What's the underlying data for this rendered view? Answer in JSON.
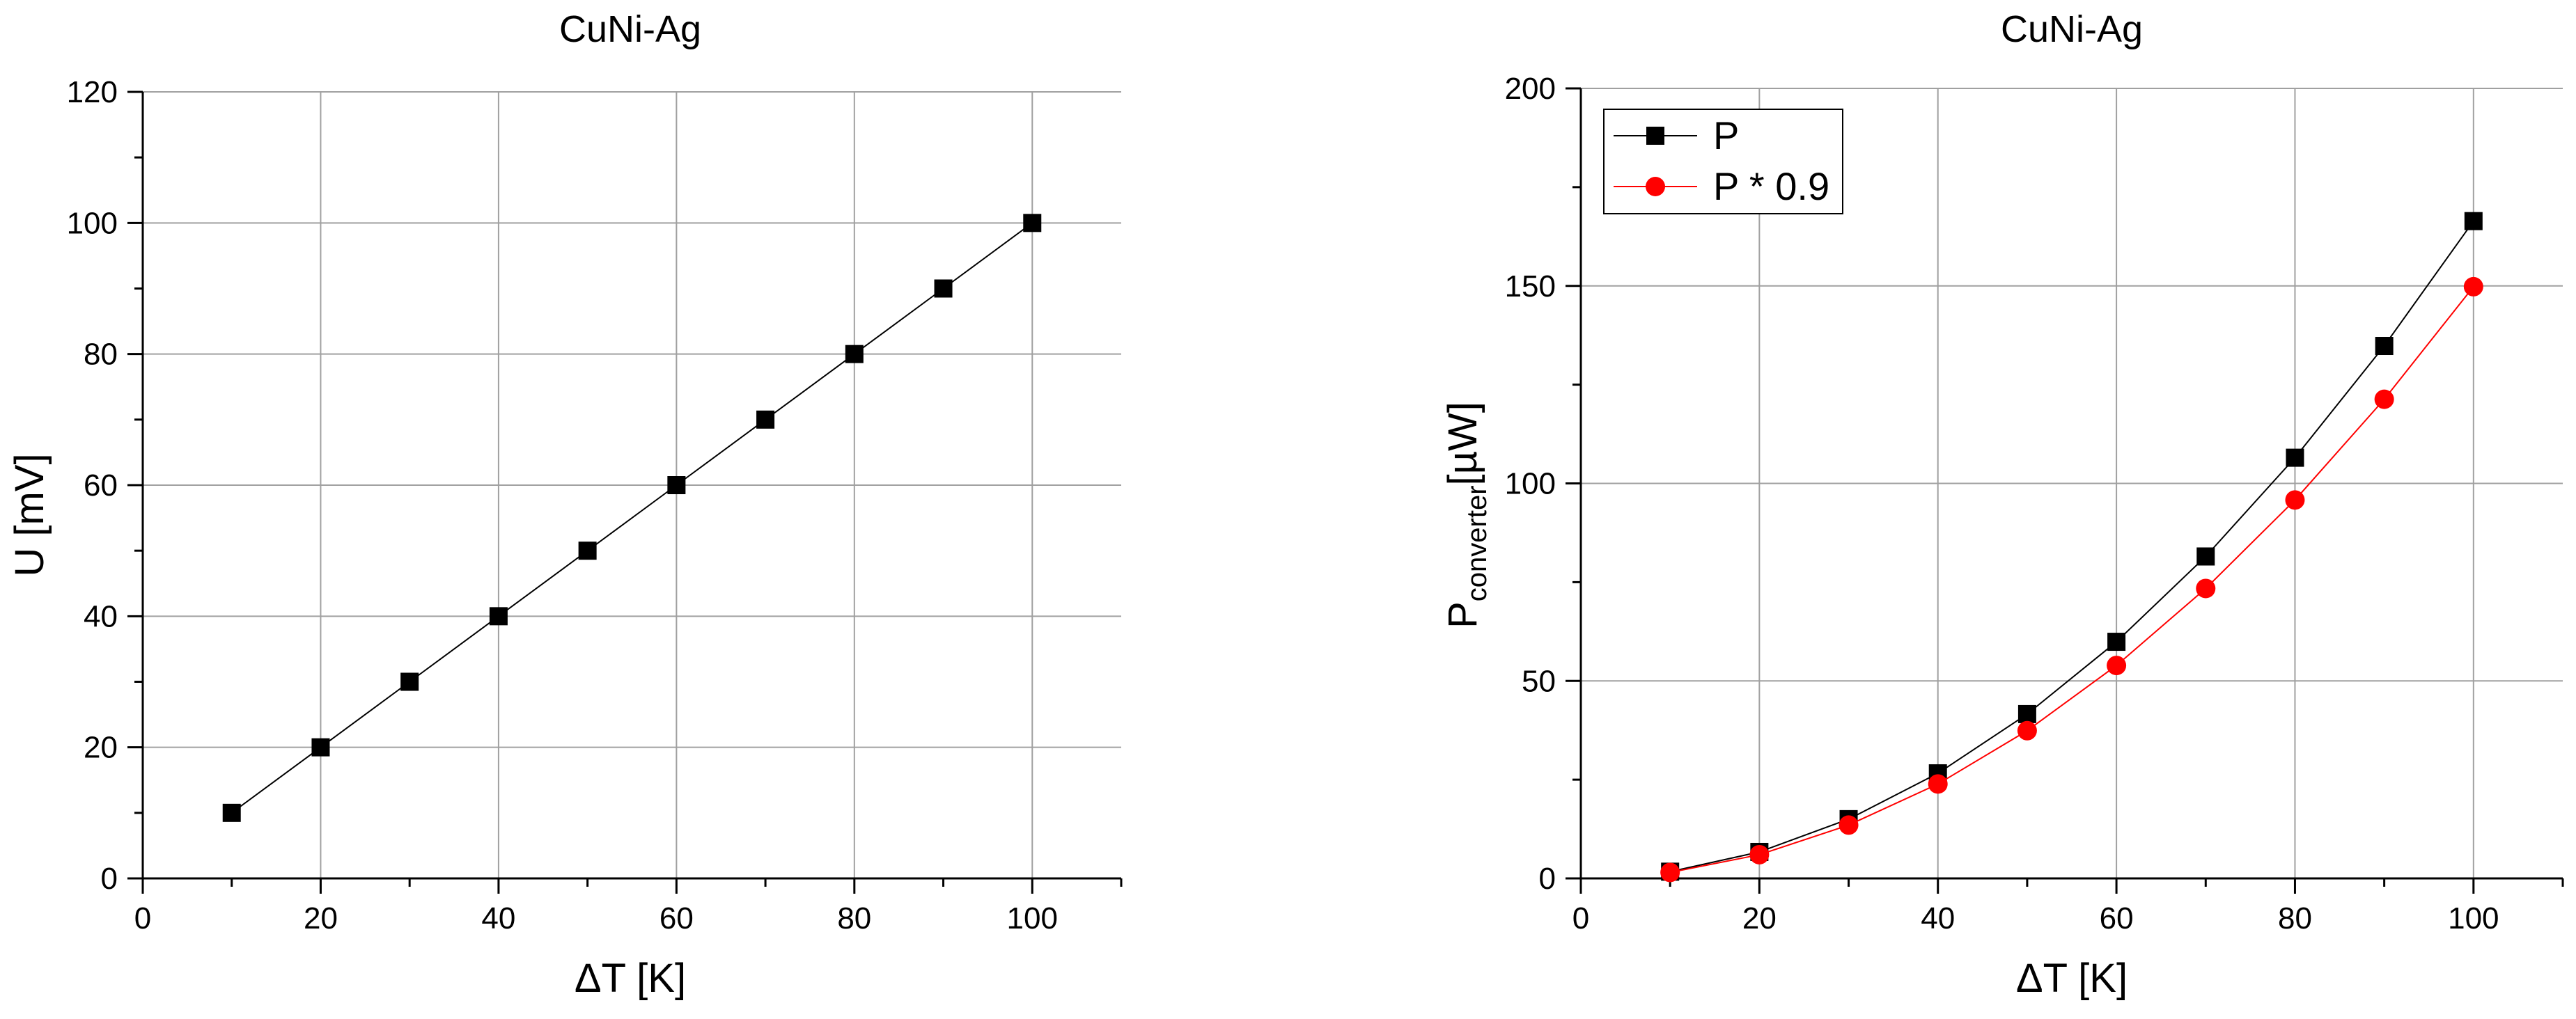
{
  "chart_data": [
    {
      "type": "line",
      "title": "CuNi-Ag",
      "xlabel": "ΔT [K]",
      "ylabel": "U [mV]",
      "xlim": [
        0,
        110
      ],
      "ylim": [
        0,
        120
      ],
      "x_ticks": [
        0,
        20,
        40,
        60,
        80,
        100
      ],
      "y_ticks": [
        0,
        20,
        40,
        60,
        80,
        100,
        120
      ],
      "grid": true,
      "series": [
        {
          "color": "#000000",
          "marker": "square",
          "x": [
            10,
            20,
            30,
            40,
            50,
            60,
            70,
            80,
            90,
            100
          ],
          "y": [
            10,
            20,
            30,
            40,
            50,
            60,
            70,
            80,
            90,
            100
          ]
        }
      ]
    },
    {
      "type": "line",
      "title": "CuNi-Ag",
      "xlabel": "ΔT [K]",
      "ylabel": "P",
      "ylabel_subscript": "converter",
      "ylabel_suffix": "[µW]",
      "xlim": [
        0,
        110
      ],
      "ylim": [
        0,
        200
      ],
      "x_ticks": [
        0,
        20,
        40,
        60,
        80,
        100
      ],
      "y_ticks": [
        0,
        50,
        100,
        150,
        200
      ],
      "grid": true,
      "legend_position": "top-left",
      "series": [
        {
          "name": "P",
          "color": "#000000",
          "marker": "square",
          "x": [
            10,
            20,
            30,
            40,
            50,
            60,
            70,
            80,
            90,
            100
          ],
          "y": [
            1.7,
            6.7,
            15.0,
            26.6,
            41.6,
            59.9,
            81.5,
            106.5,
            134.8,
            166.4
          ]
        },
        {
          "name": "P * 0.9",
          "color": "#ff0000",
          "marker": "circle",
          "x": [
            10,
            20,
            30,
            40,
            50,
            60,
            70,
            80,
            90,
            100
          ],
          "y": [
            1.5,
            6.0,
            13.5,
            23.9,
            37.4,
            53.9,
            73.4,
            95.8,
            121.3,
            149.8
          ]
        }
      ]
    }
  ]
}
